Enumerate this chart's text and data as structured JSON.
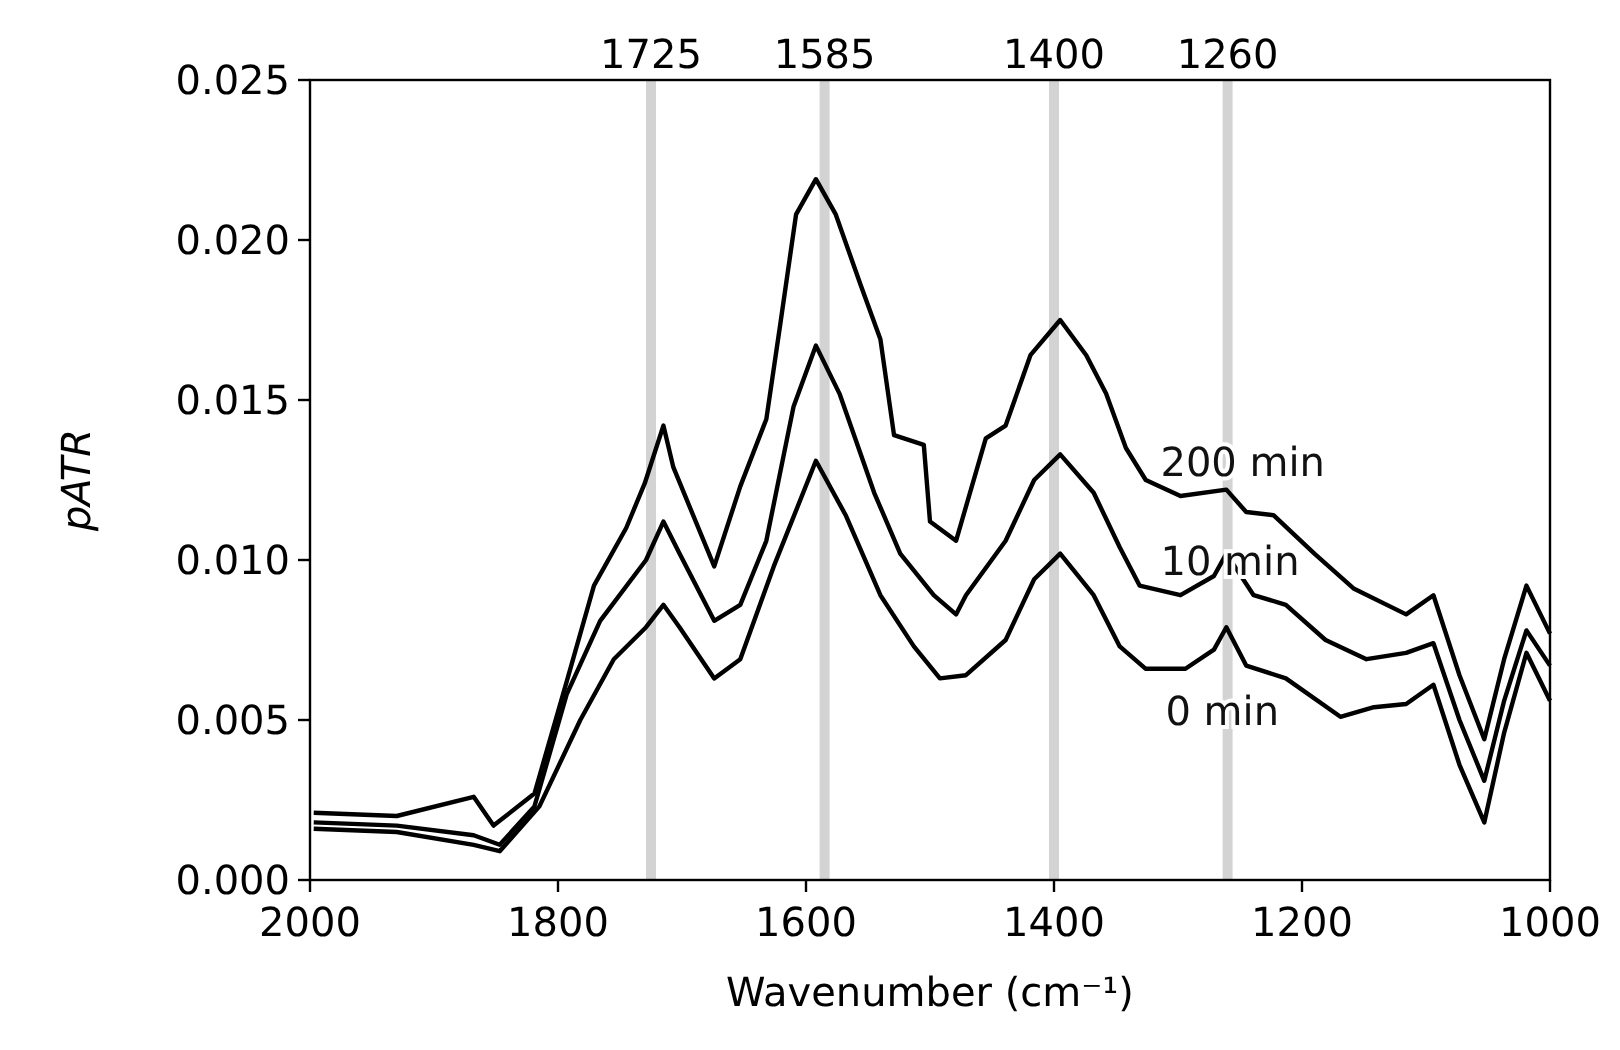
{
  "chart_data": {
    "type": "line",
    "xlabel": "Wavenumber (cm⁻¹)",
    "ylabel": "pATR",
    "xlim": [
      2000,
      1000
    ],
    "xticks": [
      2000,
      1800,
      1600,
      1400,
      1200,
      1000
    ],
    "ylim": [
      0,
      0.025
    ],
    "yticks": [
      {
        "value": 0,
        "label": "0.000"
      },
      {
        "value": 0.005,
        "label": "0.005"
      },
      {
        "value": 0.01,
        "label": "0.010"
      },
      {
        "value": 0.015,
        "label": "0.015"
      },
      {
        "value": 0.02,
        "label": "0.020"
      },
      {
        "value": 0.025,
        "label": "0.025"
      }
    ],
    "grid": false,
    "marker": "none",
    "line_style": "solid",
    "ref_lines": [
      {
        "axis": "x",
        "value": 1725,
        "label": "1725",
        "color": "#d3d3d3"
      },
      {
        "axis": "x",
        "value": 1585,
        "label": "1585",
        "color": "#d3d3d3"
      },
      {
        "axis": "x",
        "value": 1400,
        "label": "1400",
        "color": "#d3d3d3"
      },
      {
        "axis": "x",
        "value": 1260,
        "label": "1260",
        "color": "#d3d3d3"
      }
    ],
    "series": [
      {
        "name": "200 min",
        "color": "#000000",
        "x": [
          1997,
          1930,
          1868,
          1852,
          1819,
          1793,
          1771,
          1745,
          1730,
          1715,
          1707,
          1674,
          1653,
          1632,
          1621,
          1608,
          1592,
          1576,
          1556,
          1540,
          1529,
          1505,
          1500,
          1479,
          1455,
          1439,
          1419,
          1395,
          1374,
          1358,
          1342,
          1326,
          1298,
          1261,
          1245,
          1223,
          1190,
          1158,
          1116,
          1094,
          1073,
          1053,
          1037,
          1019,
          1000
        ],
        "values": [
          0.0021,
          0.002,
          0.0026,
          0.0017,
          0.0027,
          0.0062,
          0.0092,
          0.011,
          0.0124,
          0.0142,
          0.0129,
          0.0098,
          0.0123,
          0.0144,
          0.0173,
          0.0208,
          0.0219,
          0.0208,
          0.0186,
          0.0169,
          0.0139,
          0.0136,
          0.0112,
          0.0106,
          0.0138,
          0.0142,
          0.0164,
          0.0175,
          0.0164,
          0.0152,
          0.0135,
          0.0125,
          0.012,
          0.0122,
          0.0115,
          0.0114,
          0.0102,
          0.0091,
          0.0083,
          0.0089,
          0.0064,
          0.0044,
          0.0069,
          0.0092,
          0.0077
        ]
      },
      {
        "name": "10 min",
        "color": "#000000",
        "x": [
          1997,
          1930,
          1868,
          1847,
          1819,
          1793,
          1766,
          1729,
          1715,
          1702,
          1674,
          1653,
          1632,
          1610,
          1592,
          1573,
          1545,
          1524,
          1497,
          1479,
          1471,
          1439,
          1416,
          1395,
          1368,
          1347,
          1331,
          1298,
          1271,
          1261,
          1239,
          1213,
          1181,
          1148,
          1116,
          1094,
          1073,
          1053,
          1037,
          1019,
          1000
        ],
        "values": [
          0.0018,
          0.0017,
          0.0014,
          0.0011,
          0.0023,
          0.0058,
          0.0081,
          0.01,
          0.0112,
          0.0102,
          0.0081,
          0.0086,
          0.0106,
          0.0148,
          0.0167,
          0.0152,
          0.0121,
          0.0102,
          0.0089,
          0.0083,
          0.0089,
          0.0106,
          0.0125,
          0.0133,
          0.0121,
          0.0104,
          0.0092,
          0.0089,
          0.0095,
          0.0102,
          0.0089,
          0.0086,
          0.0075,
          0.0069,
          0.0071,
          0.0074,
          0.005,
          0.0031,
          0.0056,
          0.0078,
          0.0067
        ]
      },
      {
        "name": "0 min",
        "color": "#000000",
        "x": [
          1997,
          1930,
          1868,
          1847,
          1815,
          1782,
          1755,
          1729,
          1715,
          1702,
          1674,
          1653,
          1626,
          1592,
          1568,
          1540,
          1513,
          1492,
          1471,
          1439,
          1416,
          1395,
          1368,
          1347,
          1326,
          1294,
          1271,
          1261,
          1245,
          1213,
          1169,
          1142,
          1116,
          1094,
          1073,
          1053,
          1037,
          1019,
          1000
        ],
        "values": [
          0.0016,
          0.0015,
          0.0011,
          0.0009,
          0.0023,
          0.005,
          0.0069,
          0.0079,
          0.0086,
          0.0079,
          0.0063,
          0.0069,
          0.0098,
          0.0131,
          0.0114,
          0.0089,
          0.0073,
          0.0063,
          0.0064,
          0.0075,
          0.0094,
          0.0102,
          0.0089,
          0.0073,
          0.0066,
          0.0066,
          0.0072,
          0.0079,
          0.0067,
          0.0063,
          0.0051,
          0.0054,
          0.0055,
          0.0061,
          0.0036,
          0.0018,
          0.0046,
          0.0071,
          0.0056
        ]
      }
    ]
  }
}
